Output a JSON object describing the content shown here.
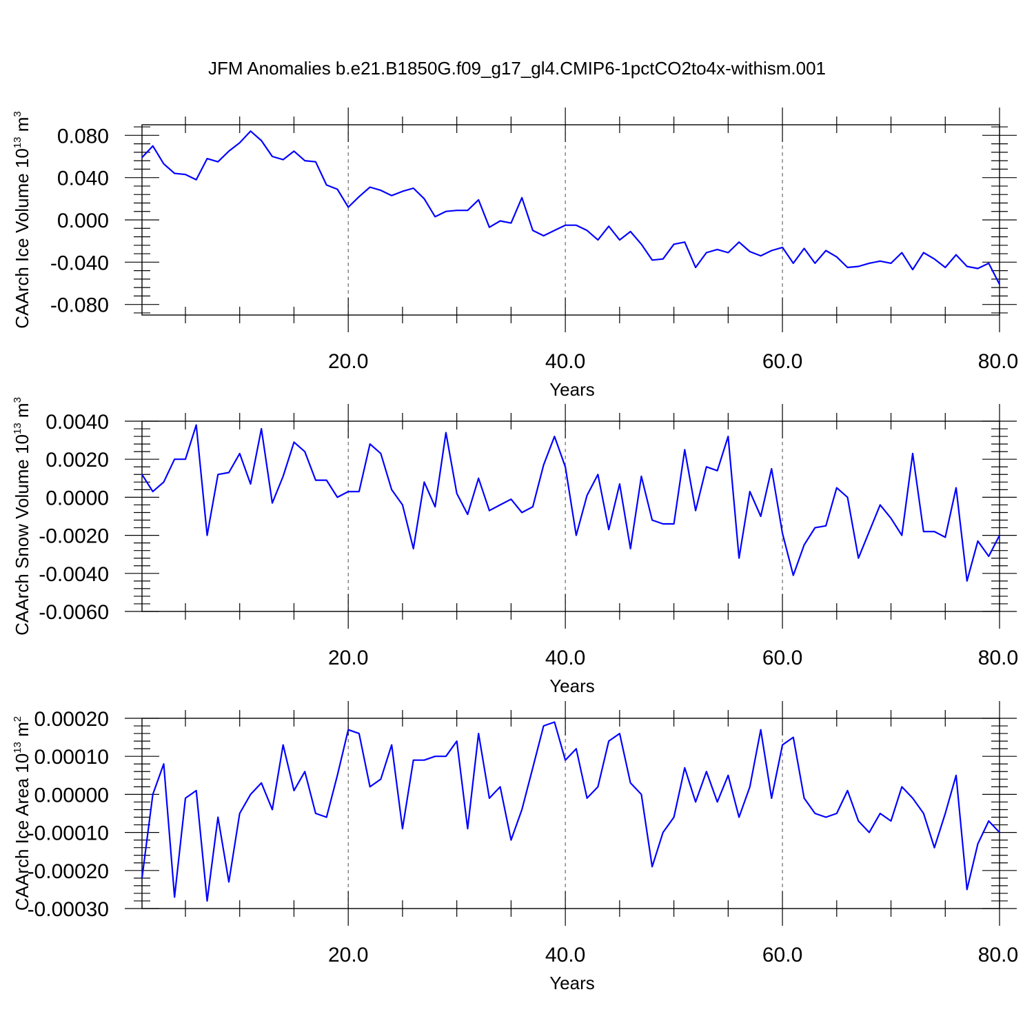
{
  "title": "JFM Anomalies b.e21.B1850G.f09_g17_gl4.CMIP6-1pctCO2to4x-withism.001",
  "colors": {
    "series": "#0000ff",
    "axes": "#000000",
    "background": "#ffffff"
  },
  "chart_data": [
    {
      "type": "line",
      "ylabel": {
        "main": "CAArch Ice Volume 10",
        "sup": "13",
        "unit": " m",
        "unit_sup": "3"
      },
      "xlabel": "Years",
      "xlim": [
        1,
        80
      ],
      "xticks": [
        20,
        40,
        60,
        80
      ],
      "xtick_labels": [
        "20.0",
        "40.0",
        "60.0",
        "80.0"
      ],
      "ylim": [
        -0.09,
        0.09
      ],
      "yticks": [
        0.08,
        0.04,
        0.0,
        -0.04,
        -0.08
      ],
      "ytick_labels": [
        "0.080",
        "0.040",
        "0.000",
        "-0.040",
        "-0.080"
      ],
      "grid": "vertical dashed at major x ticks",
      "x": [
        1,
        2,
        3,
        4,
        5,
        6,
        7,
        8,
        9,
        10,
        11,
        12,
        13,
        14,
        15,
        16,
        17,
        18,
        19,
        20,
        21,
        22,
        23,
        24,
        25,
        26,
        27,
        28,
        29,
        30,
        31,
        32,
        33,
        34,
        35,
        36,
        37,
        38,
        39,
        40,
        41,
        42,
        43,
        44,
        45,
        46,
        47,
        48,
        49,
        50,
        51,
        52,
        53,
        54,
        55,
        56,
        57,
        58,
        59,
        60,
        61,
        62,
        63,
        64,
        65,
        66,
        67,
        68,
        69,
        70,
        71,
        72,
        73,
        74,
        75,
        76,
        77,
        78,
        79,
        80
      ],
      "series": [
        {
          "values": [
            0.059,
            0.07,
            0.053,
            0.044,
            0.043,
            0.038,
            0.058,
            0.055,
            0.065,
            0.073,
            0.084,
            0.075,
            0.06,
            0.057,
            0.065,
            0.056,
            0.055,
            0.033,
            0.029,
            0.012,
            0.022,
            0.031,
            0.028,
            0.023,
            0.027,
            0.03,
            0.02,
            0.003,
            0.008,
            0.009,
            0.009,
            0.019,
            -0.007,
            -0.001,
            -0.003,
            0.021,
            -0.01,
            -0.015,
            -0.01,
            -0.005,
            -0.005,
            -0.01,
            -0.019,
            -0.006,
            -0.019,
            -0.011,
            -0.023,
            -0.038,
            -0.037,
            -0.023,
            -0.021,
            -0.045,
            -0.031,
            -0.028,
            -0.031,
            -0.021,
            -0.03,
            -0.034,
            -0.029,
            -0.026,
            -0.041,
            -0.027,
            -0.041,
            -0.029,
            -0.035,
            -0.045,
            -0.044,
            -0.041,
            -0.039,
            -0.041,
            -0.031,
            -0.047,
            -0.031,
            -0.037,
            -0.045,
            -0.033,
            -0.044,
            -0.046,
            -0.041,
            -0.061
          ]
        }
      ]
    },
    {
      "type": "line",
      "ylabel": {
        "main": "CAArch Snow Volume 10",
        "sup": "13",
        "unit": " m",
        "unit_sup": "3"
      },
      "xlabel": "Years",
      "xlim": [
        1,
        80
      ],
      "xticks": [
        20,
        40,
        60,
        80
      ],
      "xtick_labels": [
        "20.0",
        "40.0",
        "60.0",
        "80.0"
      ],
      "ylim": [
        -0.006,
        0.004
      ],
      "yticks": [
        0.004,
        0.002,
        0.0,
        -0.002,
        -0.004,
        -0.006
      ],
      "ytick_labels": [
        "0.0040",
        "0.0020",
        "0.0000",
        "-0.0020",
        "-0.0040",
        "-0.0060"
      ],
      "grid": "vertical dashed at major x ticks",
      "x": [
        1,
        2,
        3,
        4,
        5,
        6,
        7,
        8,
        9,
        10,
        11,
        12,
        13,
        14,
        15,
        16,
        17,
        18,
        19,
        20,
        21,
        22,
        23,
        24,
        25,
        26,
        27,
        28,
        29,
        30,
        31,
        32,
        33,
        34,
        35,
        36,
        37,
        38,
        39,
        40,
        41,
        42,
        43,
        44,
        45,
        46,
        47,
        48,
        49,
        50,
        51,
        52,
        53,
        54,
        55,
        56,
        57,
        58,
        59,
        60,
        61,
        62,
        63,
        64,
        65,
        66,
        67,
        68,
        69,
        70,
        71,
        72,
        73,
        74,
        75,
        76,
        77,
        78,
        79,
        80
      ],
      "series": [
        {
          "values": [
            0.0012,
            0.0003,
            0.0008,
            0.002,
            0.002,
            0.0038,
            -0.002,
            0.0012,
            0.0013,
            0.0023,
            0.0007,
            0.0036,
            -0.0003,
            0.0011,
            0.0029,
            0.0024,
            0.0009,
            0.0009,
            0.0,
            0.0003,
            0.0003,
            0.0028,
            0.0023,
            0.0004,
            -0.0004,
            -0.0027,
            0.0008,
            -0.0005,
            0.0034,
            0.0002,
            -0.0009,
            0.001,
            -0.0007,
            -0.0004,
            -0.0001,
            -0.0008,
            -0.0005,
            0.0017,
            0.0032,
            0.0016,
            -0.002,
            0.0001,
            0.0012,
            -0.0017,
            0.0007,
            -0.0027,
            0.0011,
            -0.0012,
            -0.0014,
            -0.0014,
            0.0025,
            -0.0007,
            0.0016,
            0.0014,
            0.0032,
            -0.0032,
            0.0003,
            -0.001,
            0.0015,
            -0.0019,
            -0.0041,
            -0.0025,
            -0.0016,
            -0.0015,
            0.0005,
            0.0,
            -0.0032,
            -0.0018,
            -0.0004,
            -0.0011,
            -0.002,
            0.0023,
            -0.0018,
            -0.0018,
            -0.0021,
            0.0005,
            -0.0044,
            -0.0023,
            -0.0031,
            -0.002
          ]
        }
      ]
    },
    {
      "type": "line",
      "ylabel": {
        "main": "CAArch Ice Area 10",
        "sup": "13",
        "unit": " m",
        "unit_sup": "2"
      },
      "xlabel": "Years",
      "xlim": [
        1,
        80
      ],
      "xticks": [
        20,
        40,
        60,
        80
      ],
      "xtick_labels": [
        "20.0",
        "40.0",
        "60.0",
        "80.0"
      ],
      "ylim": [
        -0.0003,
        0.0002
      ],
      "yticks": [
        0.0002,
        0.0001,
        0.0,
        -0.0001,
        -0.0002,
        -0.0003
      ],
      "ytick_labels": [
        "0.00020",
        "0.00010",
        "0.00000",
        "-0.00010",
        "-0.00020",
        "-0.00030"
      ],
      "grid": "vertical dashed at major x ticks",
      "x": [
        1,
        2,
        3,
        4,
        5,
        6,
        7,
        8,
        9,
        10,
        11,
        12,
        13,
        14,
        15,
        16,
        17,
        18,
        19,
        20,
        21,
        22,
        23,
        24,
        25,
        26,
        27,
        28,
        29,
        30,
        31,
        32,
        33,
        34,
        35,
        36,
        37,
        38,
        39,
        40,
        41,
        42,
        43,
        44,
        45,
        46,
        47,
        48,
        49,
        50,
        51,
        52,
        53,
        54,
        55,
        56,
        57,
        58,
        59,
        60,
        61,
        62,
        63,
        64,
        65,
        66,
        67,
        68,
        69,
        70,
        71,
        72,
        73,
        74,
        75,
        76,
        77,
        78,
        79,
        80
      ],
      "series": [
        {
          "values": [
            -0.00022,
            0.0,
            8e-05,
            -0.00027,
            -1e-05,
            1e-05,
            -0.00028,
            -6e-05,
            -0.00023,
            -5e-05,
            0.0,
            3e-05,
            -4e-05,
            0.00013,
            1e-05,
            6e-05,
            -5e-05,
            -6e-05,
            5e-05,
            0.00017,
            0.00016,
            2e-05,
            4e-05,
            0.00013,
            -9e-05,
            9e-05,
            9e-05,
            0.0001,
            0.0001,
            0.00014,
            -9e-05,
            0.00016,
            -1e-05,
            2e-05,
            -0.00012,
            -4e-05,
            7e-05,
            0.00018,
            0.00019,
            9e-05,
            0.00012,
            -1e-05,
            2e-05,
            0.00014,
            0.00016,
            3e-05,
            0.0,
            -0.00019,
            -0.0001,
            -6e-05,
            7e-05,
            -2e-05,
            6e-05,
            -2e-05,
            5e-05,
            -6e-05,
            2e-05,
            0.00017,
            -1e-05,
            0.00013,
            0.00015,
            -1e-05,
            -5e-05,
            -6e-05,
            -5e-05,
            1e-05,
            -7e-05,
            -0.0001,
            -5e-05,
            -7e-05,
            2e-05,
            -1e-05,
            -5e-05,
            -0.00014,
            -5e-05,
            5e-05,
            -0.00025,
            -0.00013,
            -7e-05,
            -0.0001
          ]
        }
      ]
    }
  ]
}
